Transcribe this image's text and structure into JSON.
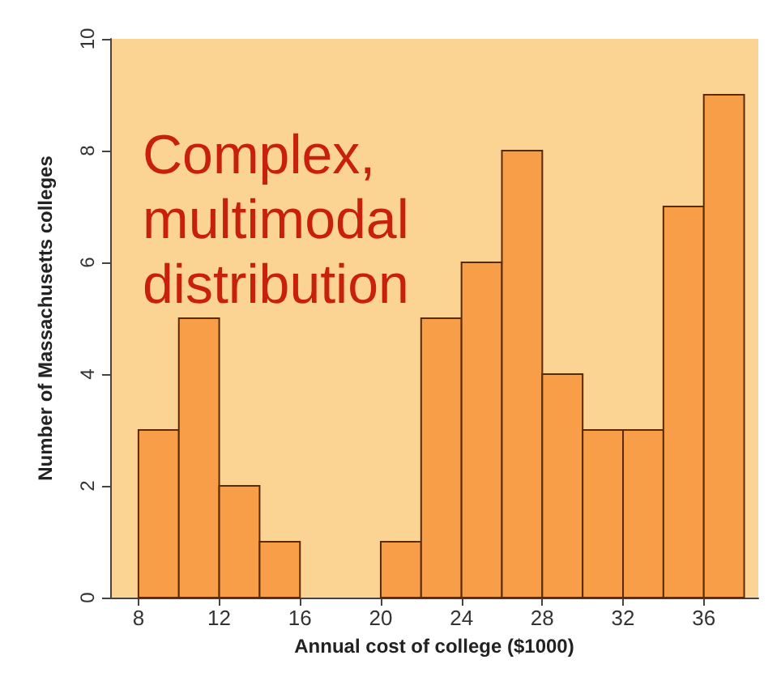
{
  "chart_data": {
    "type": "histogram",
    "xlabel": "Annual cost of college ($1000)",
    "ylabel": "Number of Massachusetts colleges",
    "bins": [
      8,
      10,
      12,
      14,
      16,
      18,
      20,
      22,
      24,
      26,
      28,
      30,
      32,
      34,
      36,
      38
    ],
    "values": [
      3,
      5,
      2,
      1,
      0,
      0,
      1,
      5,
      6,
      8,
      4,
      3,
      3,
      7,
      9
    ],
    "color": "#f89e48",
    "xlim": [
      6.6,
      38.7
    ],
    "xticks": [
      8,
      12,
      16,
      20,
      24,
      28,
      32,
      36
    ],
    "ylim": [
      0,
      10
    ],
    "yticks": [
      0,
      2,
      4,
      6,
      8,
      10
    ],
    "annotations": [
      "Complex,\nmultimodal\ndistribution"
    ]
  }
}
